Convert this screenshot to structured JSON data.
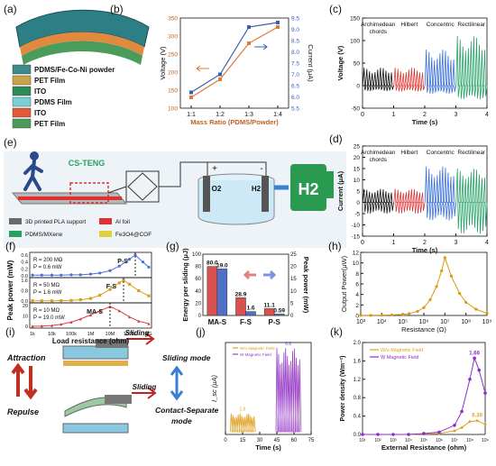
{
  "panels": {
    "a": "(a)",
    "b": "(b)",
    "c": "(c)",
    "d": "(d)",
    "e": "(e)",
    "f": "(f)",
    "g": "(g)",
    "h": "(h)",
    "i": "(i)",
    "j": "(j)",
    "k": "(k)"
  },
  "legend_a": [
    "PDMS/Fe-Co-Ni powder",
    "PET Film",
    "ITO",
    "PDMS Film",
    "ITO",
    "PET Film"
  ],
  "legend_a_colors": [
    "#3d8a8a",
    "#c9a44a",
    "#2e8b57",
    "#7ad0d8",
    "#e05a3a",
    "#4b9c5a"
  ],
  "panel_e": {
    "label": "CS-TENG",
    "legend": [
      "3D printed PLA support",
      "Al foil",
      "PDMS/MXene",
      "Fe3O4@COF"
    ],
    "o2": "O2",
    "h2": "H2",
    "plus": "+",
    "minus": "-",
    "h2_sign": "H2"
  },
  "panel_i": {
    "attraction": "Attraction",
    "repulse": "Repulse",
    "sliding": "Sliding",
    "sliding2": "Sliding",
    "sliding_mode": "Sliding mode",
    "contact_mode": "Contact-Separate mode"
  },
  "chart_data": [
    {
      "panel": "b",
      "type": "line",
      "categories": [
        "1:1",
        "1:2",
        "1:3",
        "1:4"
      ],
      "xlabel": "Mass Ratio (PDMS/Powder)",
      "ylabel": "Voltage (V)",
      "ylim": [
        100,
        350
      ],
      "yticks": [
        "100",
        "150",
        "200",
        "250",
        "300",
        "350"
      ],
      "y2label": "Current (μA)",
      "y2lim": [
        5.5,
        9.5
      ],
      "y2ticks": [
        "5.5",
        "6.0",
        "6.5",
        "7.0",
        "7.5",
        "8.0",
        "8.5",
        "9.0",
        "9.5"
      ],
      "series": [
        {
          "axis": "left",
          "color": "#e07a3a",
          "values": [
            130,
            180,
            280,
            325
          ]
        },
        {
          "axis": "right",
          "color": "#3a5fb0",
          "values": [
            6.2,
            7.0,
            9.1,
            9.3
          ]
        }
      ]
    },
    {
      "panel": "c",
      "type": "line",
      "xlabel": "Time (s)",
      "ylabel": "Voltage (V)",
      "xlim": [
        0,
        4
      ],
      "ylim": [
        -50,
        150
      ],
      "xticks": [
        "0",
        "1",
        "2",
        "3",
        "4"
      ],
      "yticks": [
        "-50",
        "0",
        "50",
        "100",
        "150"
      ],
      "series": [
        {
          "name": "Archimedean chords",
          "color": "#111111",
          "range": [
            0,
            1
          ],
          "pos": 40,
          "neg": -12
        },
        {
          "name": "Hilbert",
          "color": "#e03a3a",
          "range": [
            1,
            2
          ],
          "pos": 40,
          "neg": -13
        },
        {
          "name": "Concentric",
          "color": "#3a6fd8",
          "range": [
            2,
            3
          ],
          "pos": 80,
          "neg": -18
        },
        {
          "name": "Rectilinear",
          "color": "#2aa36a",
          "range": [
            3,
            4
          ],
          "pos": 110,
          "neg": -30
        }
      ]
    },
    {
      "panel": "d",
      "type": "line",
      "xlabel": "Time (s)",
      "ylabel": "Current (μA)",
      "xlim": [
        0,
        4
      ],
      "ylim": [
        -15,
        25
      ],
      "xticks": [
        "0",
        "1",
        "2",
        "3",
        "4"
      ],
      "yticks": [
        "-15",
        "-10",
        "-5",
        "0",
        "5",
        "10",
        "15",
        "20",
        "25"
      ],
      "series": [
        {
          "name": "Archimedean chords",
          "color": "#111111",
          "range": [
            0,
            1
          ],
          "pos": 6,
          "neg": -5
        },
        {
          "name": "Hilbert",
          "color": "#e03a3a",
          "range": [
            1,
            2
          ],
          "pos": 6,
          "neg": -5
        },
        {
          "name": "Concentric",
          "color": "#3a6fd8",
          "range": [
            2,
            3
          ],
          "pos": 16,
          "neg": -8
        },
        {
          "name": "Rectilinear",
          "color": "#2aa36a",
          "range": [
            3,
            4
          ],
          "pos": 15,
          "neg": -14
        }
      ]
    },
    {
      "panel": "f",
      "type": "line",
      "xlabel": "Load resistance (ohm)",
      "ylabel": "Peak power (mW)",
      "xticks": [
        "1k",
        "10k",
        "100k",
        "1M",
        "10M",
        "100M",
        "1G"
      ],
      "subplots": [
        {
          "name": "P-S",
          "color": "#4a6fd8",
          "r_label": "R = 200 MΩ",
          "p_label": "P = 0.6 mW",
          "ylim": [
            0,
            0.6
          ],
          "yticks": [
            "0.0",
            "0.2",
            "0.4",
            "0.6"
          ],
          "peak_x": 200000000,
          "x": [
            1000,
            3000,
            10000,
            30000,
            100000,
            300000,
            1000000,
            3000000,
            10000000,
            30000000,
            100000000,
            200000000,
            500000000,
            1000000000
          ],
          "y": [
            0.02,
            0.02,
            0.02,
            0.02,
            0.03,
            0.03,
            0.05,
            0.08,
            0.15,
            0.28,
            0.48,
            0.6,
            0.4,
            0.25
          ]
        },
        {
          "name": "F-S",
          "color": "#d8a020",
          "r_label": "R = 50 MΩ",
          "p_label": "P = 1.6 mW",
          "ylim": [
            0,
            1.6
          ],
          "yticks": [
            "0.0",
            "0.8",
            "1.6"
          ],
          "peak_x": 50000000,
          "x": [
            1000,
            3000,
            10000,
            30000,
            100000,
            300000,
            1000000,
            3000000,
            10000000,
            30000000,
            50000000,
            100000000,
            300000000,
            1000000000
          ],
          "y": [
            0.02,
            0.02,
            0.02,
            0.03,
            0.05,
            0.1,
            0.2,
            0.45,
            0.9,
            1.4,
            1.6,
            1.3,
            0.8,
            0.4
          ]
        },
        {
          "name": "MA-S",
          "color": "#d84040",
          "r_label": "R = 10 MΩ",
          "p_label": "P = 19.0 mW",
          "ylim": [
            0,
            20
          ],
          "yticks": [
            "0",
            "10",
            "20"
          ],
          "peak_x": 10000000,
          "x": [
            1000,
            3000,
            10000,
            30000,
            100000,
            300000,
            1000000,
            3000000,
            10000000,
            30000000,
            100000000,
            300000000,
            1000000000
          ],
          "y": [
            0.1,
            0.3,
            0.8,
            2,
            4,
            7,
            11,
            15,
            19,
            15,
            9,
            5,
            2.5
          ]
        }
      ]
    },
    {
      "panel": "g",
      "type": "bar",
      "categories": [
        "MA-S",
        "F-S",
        "P-S"
      ],
      "ylabel": "Energy per sliding (μJ)",
      "ylim": [
        0,
        100
      ],
      "yticks": [
        "0",
        "20",
        "40",
        "60",
        "80",
        "100"
      ],
      "y2label": "Peak power (mW)",
      "y2lim": [
        0,
        25
      ],
      "y2ticks": [
        "0",
        "5",
        "10",
        "15",
        "20",
        "25"
      ],
      "series": [
        {
          "color": "#d85050",
          "values": [
            80.0,
            28.9,
            11.1
          ],
          "labels": [
            "80.0",
            "28.9",
            "11.1"
          ]
        },
        {
          "color": "#5070c8",
          "values": [
            19.0,
            1.6,
            0.59
          ],
          "labels": [
            "19.0",
            "1.6",
            "0.59"
          ]
        }
      ]
    },
    {
      "panel": "h",
      "type": "line",
      "xlabel": "Resistance (Ω)",
      "ylabel": "Output Power(μW)",
      "ylim": [
        0,
        12
      ],
      "yticks": [
        "0",
        "2",
        "4",
        "6",
        "8",
        "10",
        "12"
      ],
      "xticks": [
        "10³",
        "10⁴",
        "10⁵",
        "10⁶",
        "10⁷",
        "10⁸",
        "10⁹"
      ],
      "color": "#d89a10",
      "x": [
        1000,
        3000,
        10000,
        30000,
        100000,
        200000,
        500000,
        1000000,
        2000000,
        4000000,
        7000000,
        10000000,
        20000000,
        50000000,
        100000000,
        300000000,
        1000000000
      ],
      "y": [
        0.02,
        0.03,
        0.05,
        0.1,
        0.2,
        0.35,
        0.8,
        1.5,
        3.0,
        5.5,
        8.5,
        11.0,
        7.5,
        4.2,
        2.5,
        1.2,
        0.4
      ]
    },
    {
      "panel": "j",
      "type": "line",
      "xlabel": "Time (s)",
      "ylabel": "I_sc (μA)",
      "xticks": [
        "0",
        "15",
        "30",
        "45",
        "60",
        "75"
      ],
      "xlim": [
        0,
        75
      ],
      "ylim": [
        0,
        7
      ],
      "series": [
        {
          "name": "W/o Magnetic Field",
          "color": "#e0a020",
          "range": [
            5,
            25
          ],
          "peak": 1.6,
          "label": "1.6"
        },
        {
          "name": "W Magnetic Field",
          "color": "#9a40c8",
          "range": [
            45,
            65
          ],
          "peak": 6.6,
          "label": "6.6"
        }
      ]
    },
    {
      "panel": "k",
      "type": "line",
      "xlabel": "External Resistance (ohm)",
      "ylabel": "Power density (Wm⁻²)",
      "ylim": [
        0,
        2.0
      ],
      "yticks": [
        "0.0",
        "0.4",
        "0.8",
        "1.2",
        "1.6",
        "2.0"
      ],
      "xticks": [
        "10¹",
        "10²",
        "10³",
        "10⁴",
        "10⁵",
        "10⁶",
        "10⁷",
        "10⁸",
        "10⁹"
      ],
      "series": [
        {
          "name": "W/o Magnetic Field",
          "color": "#e0a020",
          "peak_label": "0.30",
          "x": [
            10,
            100,
            1000,
            10000,
            100000,
            1000000,
            10000000,
            30000000,
            100000000,
            300000000,
            1000000000
          ],
          "y": [
            0,
            0,
            0,
            0,
            0.01,
            0.02,
            0.08,
            0.15,
            0.28,
            0.3,
            0.22
          ]
        },
        {
          "name": "W Magnetic Field",
          "color": "#8a30c8",
          "peak_label": "1.66",
          "x": [
            10,
            100,
            1000,
            10000,
            100000,
            1000000,
            10000000,
            30000000,
            100000000,
            200000000,
            400000000,
            1000000000
          ],
          "y": [
            0,
            0,
            0,
            0,
            0.02,
            0.05,
            0.2,
            0.5,
            1.2,
            1.66,
            1.4,
            0.9
          ]
        }
      ]
    }
  ]
}
